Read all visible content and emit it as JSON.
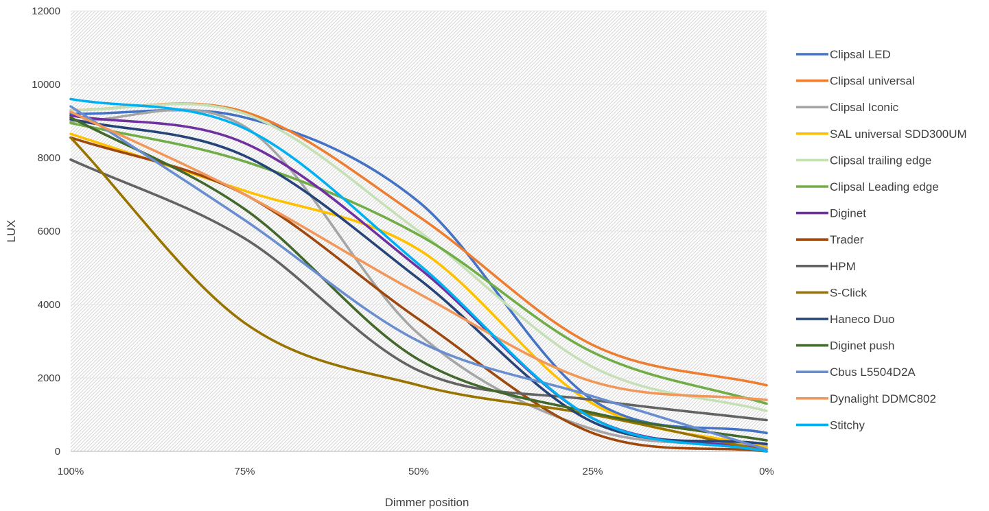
{
  "chart_data": {
    "type": "line",
    "title": "",
    "xlabel": "Dimmer position",
    "ylabel": "LUX",
    "x_categories": [
      "100%",
      "75%",
      "50%",
      "25%",
      "0%"
    ],
    "x": [
      100,
      75,
      50,
      25,
      0
    ],
    "xlim": [
      100,
      0
    ],
    "ylim": [
      0,
      12000
    ],
    "y_ticks": [
      0,
      2000,
      4000,
      6000,
      8000,
      10000,
      12000
    ],
    "grid": true,
    "legend_position": "right",
    "series": [
      {
        "name": "Clipsal LED",
        "color": "#4472C4",
        "values": [
          9200,
          9100,
          6800,
          1400,
          500
        ]
      },
      {
        "name": "Clipsal universal",
        "color": "#ED7D31",
        "values": [
          9300,
          9250,
          6400,
          2900,
          1800
        ]
      },
      {
        "name": "Clipsal Iconic",
        "color": "#A5A5A5",
        "values": [
          9000,
          8850,
          3200,
          600,
          150
        ]
      },
      {
        "name": "SAL universal SDD300UM",
        "color": "#FFC000",
        "values": [
          8650,
          7100,
          5500,
          1300,
          100
        ]
      },
      {
        "name": "Clipsal trailing edge",
        "color": "#C5E0B4",
        "values": [
          9300,
          9200,
          6000,
          2300,
          1100
        ]
      },
      {
        "name": "Clipsal Leading edge",
        "color": "#70AD47",
        "values": [
          8950,
          7900,
          5900,
          2700,
          1300
        ]
      },
      {
        "name": "Diginet",
        "color": "#7030A0",
        "values": [
          9150,
          8400,
          5000,
          900,
          50
        ]
      },
      {
        "name": "Trader",
        "color": "#9E480E",
        "values": [
          8550,
          7000,
          3600,
          500,
          0
        ]
      },
      {
        "name": "HPM",
        "color": "#636363",
        "values": [
          7950,
          5800,
          2200,
          1400,
          850
        ]
      },
      {
        "name": "S-Click",
        "color": "#997300",
        "values": [
          8550,
          3500,
          1800,
          1000,
          0
        ]
      },
      {
        "name": "Haneco Duo",
        "color": "#264478",
        "values": [
          9050,
          8050,
          4700,
          800,
          200
        ]
      },
      {
        "name": "Diginet push",
        "color": "#43682B",
        "values": [
          9100,
          6600,
          2500,
          1050,
          300
        ]
      },
      {
        "name": "Cbus L5504D2A",
        "color": "#698ED0",
        "values": [
          9400,
          6300,
          3000,
          1500,
          50
        ]
      },
      {
        "name": "Dynalight DDMC802",
        "color": "#F1975A",
        "values": [
          9250,
          7000,
          4300,
          1900,
          1400
        ]
      },
      {
        "name": "Stitchy",
        "color": "#00B0F0",
        "values": [
          9600,
          8800,
          5100,
          900,
          0
        ]
      }
    ]
  }
}
